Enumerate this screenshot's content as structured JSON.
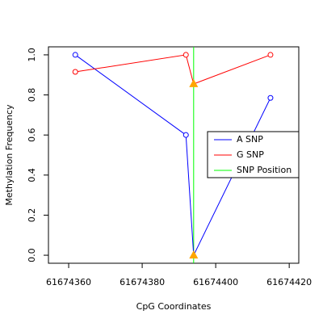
{
  "chart_data": {
    "type": "line",
    "x_label": "CpG Coordinates",
    "y_label": "Methylation Frequency",
    "xlim": [
      61674354.5,
      61674422.6
    ],
    "ylim": [
      -0.04,
      1.04
    ],
    "xticks": [
      61674360,
      61674380,
      61674400,
      61674420
    ],
    "yticks": [
      {
        "value": 0,
        "label": "0.0"
      },
      0.2,
      0.4,
      0.6,
      0.8,
      {
        "value": 1,
        "label": "1.0"
      }
    ],
    "series": [
      {
        "name": "A SNP",
        "color": "#0000ff",
        "x": [
          61674361.8,
          61674391.9,
          61674394,
          61674414.9
        ],
        "values": [
          1.0,
          0.6,
          0.0,
          0.785
        ]
      },
      {
        "name": "G SNP",
        "color": "#ff0000",
        "x": [
          61674361.8,
          61674391.9,
          61674394,
          61674414.9
        ],
        "values": [
          0.915,
          1.0,
          0.855,
          1.0
        ]
      }
    ],
    "vlines": [
      {
        "name": "SNP Position",
        "color": "#00ff00",
        "x": 61674394
      }
    ],
    "snp_marker_color": "#ffa500",
    "legend": "right"
  }
}
